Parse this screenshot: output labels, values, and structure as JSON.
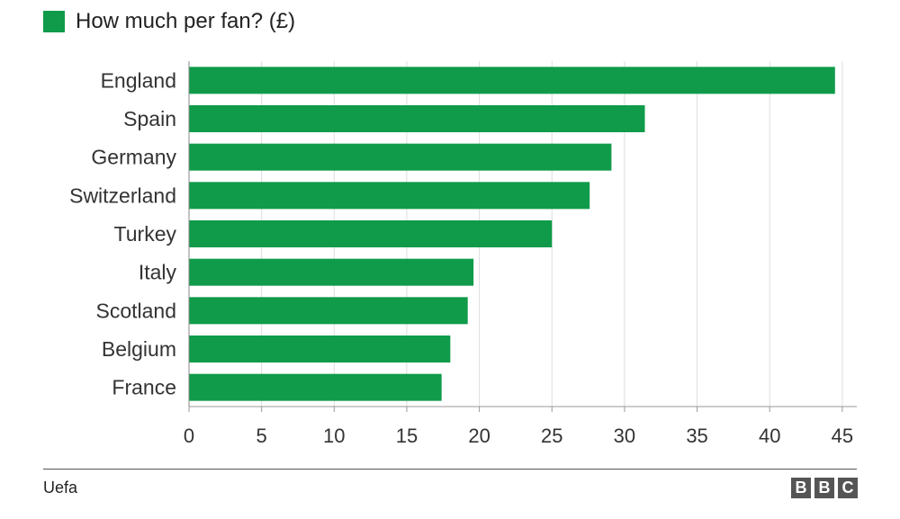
{
  "legend": {
    "label": "How much per fan? (£)",
    "color": "#0f9b4a"
  },
  "source": "Uefa",
  "logo": {
    "letters": [
      "B",
      "B",
      "C"
    ],
    "text": "BBC"
  },
  "chart_data": {
    "type": "bar",
    "orientation": "horizontal",
    "categories": [
      "England",
      "Spain",
      "Germany",
      "Switzerland",
      "Turkey",
      "Italy",
      "Scotland",
      "Belgium",
      "France"
    ],
    "values": [
      44.5,
      31.4,
      29.1,
      27.6,
      25.0,
      19.6,
      19.2,
      18.0,
      17.4
    ],
    "series": [
      {
        "name": "How much per fan? (£)",
        "values": [
          44.5,
          31.4,
          29.1,
          27.6,
          25.0,
          19.6,
          19.2,
          18.0,
          17.4
        ]
      }
    ],
    "x_ticks": [
      0,
      5,
      10,
      15,
      20,
      25,
      30,
      35,
      40,
      45
    ],
    "xlim": [
      0,
      46
    ],
    "grid": "vertical",
    "legend_position": "top-left",
    "bar_color": "#0f9b4a"
  }
}
